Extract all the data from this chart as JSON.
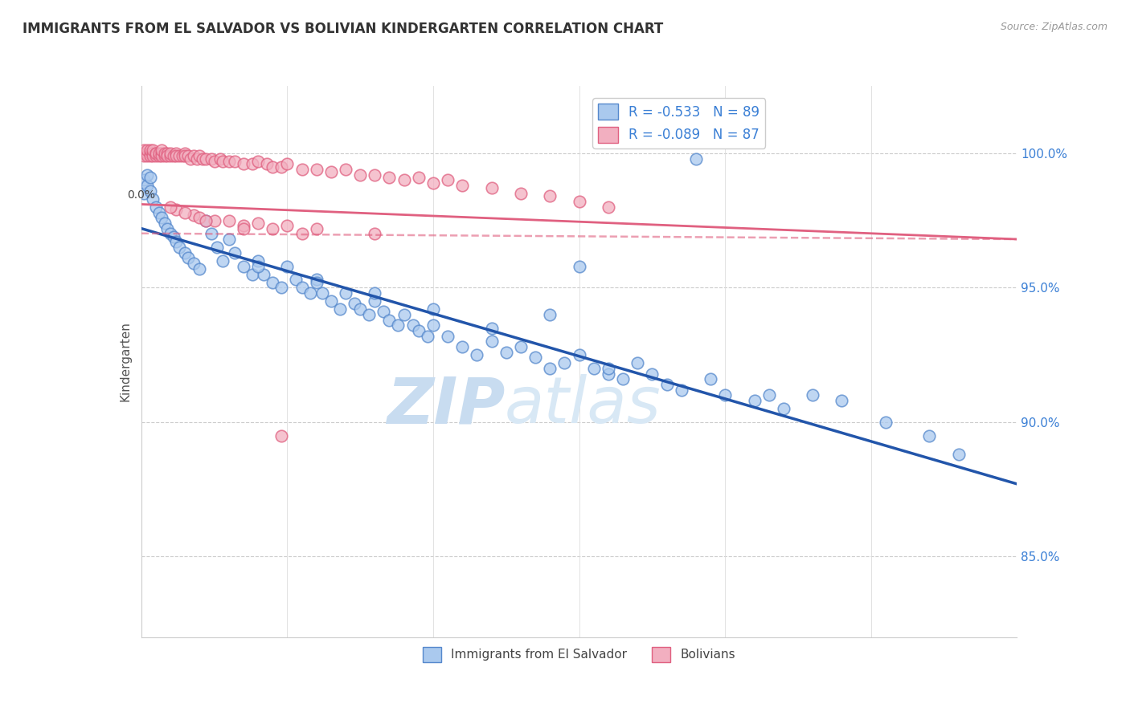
{
  "title": "IMMIGRANTS FROM EL SALVADOR VS BOLIVIAN KINDERGARTEN CORRELATION CHART",
  "source": "Source: ZipAtlas.com",
  "ylabel": "Kindergarten",
  "ytick_labels": [
    "85.0%",
    "90.0%",
    "95.0%",
    "100.0%"
  ],
  "ytick_values": [
    0.85,
    0.9,
    0.95,
    1.0
  ],
  "legend_blue_label": "Immigrants from El Salvador",
  "legend_pink_label": "Bolivians",
  "legend_blue_r": "R = -0.533",
  "legend_blue_n": "N = 89",
  "legend_pink_r": "R = -0.089",
  "legend_pink_n": "N = 87",
  "blue_color": "#aac9ee",
  "pink_color": "#f2afc0",
  "blue_edge_color": "#5588cc",
  "pink_edge_color": "#e06080",
  "blue_line_color": "#2255aa",
  "pink_line_color": "#dd5577",
  "watermark_zip": "ZIP",
  "watermark_atlas": "atlas",
  "watermark_color": "#c8dcf0",
  "xmin": 0.0,
  "xmax": 0.3,
  "ymin": 0.82,
  "ymax": 1.025,
  "blue_trend_x0": 0.0,
  "blue_trend_y0": 0.972,
  "blue_trend_x1": 0.3,
  "blue_trend_y1": 0.877,
  "pink_trend_x0": 0.0,
  "pink_trend_y0": 0.981,
  "pink_trend_x1": 0.3,
  "pink_trend_y1": 0.968,
  "blue_scatter_x": [
    0.001,
    0.001,
    0.002,
    0.002,
    0.003,
    0.003,
    0.004,
    0.005,
    0.006,
    0.007,
    0.008,
    0.009,
    0.01,
    0.011,
    0.012,
    0.013,
    0.015,
    0.016,
    0.018,
    0.02,
    0.022,
    0.024,
    0.026,
    0.028,
    0.03,
    0.032,
    0.035,
    0.038,
    0.04,
    0.042,
    0.045,
    0.048,
    0.05,
    0.053,
    0.055,
    0.058,
    0.06,
    0.062,
    0.065,
    0.068,
    0.07,
    0.073,
    0.075,
    0.078,
    0.08,
    0.083,
    0.085,
    0.088,
    0.09,
    0.093,
    0.095,
    0.098,
    0.1,
    0.105,
    0.11,
    0.115,
    0.12,
    0.125,
    0.13,
    0.135,
    0.14,
    0.145,
    0.15,
    0.155,
    0.16,
    0.165,
    0.17,
    0.175,
    0.18,
    0.185,
    0.19,
    0.195,
    0.2,
    0.21,
    0.215,
    0.22,
    0.23,
    0.24,
    0.255,
    0.27,
    0.28,
    0.15,
    0.16,
    0.14,
    0.12,
    0.1,
    0.08,
    0.06,
    0.04
  ],
  "blue_scatter_y": [
    0.985,
    0.99,
    0.988,
    0.992,
    0.986,
    0.991,
    0.983,
    0.98,
    0.978,
    0.976,
    0.974,
    0.972,
    0.97,
    0.969,
    0.967,
    0.965,
    0.963,
    0.961,
    0.959,
    0.957,
    0.975,
    0.97,
    0.965,
    0.96,
    0.968,
    0.963,
    0.958,
    0.955,
    0.96,
    0.955,
    0.952,
    0.95,
    0.958,
    0.953,
    0.95,
    0.948,
    0.953,
    0.948,
    0.945,
    0.942,
    0.948,
    0.944,
    0.942,
    0.94,
    0.945,
    0.941,
    0.938,
    0.936,
    0.94,
    0.936,
    0.934,
    0.932,
    0.936,
    0.932,
    0.928,
    0.925,
    0.93,
    0.926,
    0.928,
    0.924,
    0.92,
    0.922,
    0.925,
    0.92,
    0.918,
    0.916,
    0.922,
    0.918,
    0.914,
    0.912,
    0.998,
    0.916,
    0.91,
    0.908,
    0.91,
    0.905,
    0.91,
    0.908,
    0.9,
    0.895,
    0.888,
    0.958,
    0.92,
    0.94,
    0.935,
    0.942,
    0.948,
    0.952,
    0.958
  ],
  "pink_scatter_x": [
    0.001,
    0.001,
    0.001,
    0.002,
    0.002,
    0.002,
    0.003,
    0.003,
    0.003,
    0.004,
    0.004,
    0.004,
    0.005,
    0.005,
    0.005,
    0.006,
    0.006,
    0.007,
    0.007,
    0.007,
    0.008,
    0.008,
    0.009,
    0.009,
    0.01,
    0.01,
    0.011,
    0.012,
    0.012,
    0.013,
    0.014,
    0.015,
    0.015,
    0.016,
    0.017,
    0.018,
    0.019,
    0.02,
    0.021,
    0.022,
    0.024,
    0.025,
    0.027,
    0.028,
    0.03,
    0.032,
    0.035,
    0.038,
    0.04,
    0.043,
    0.045,
    0.048,
    0.05,
    0.055,
    0.06,
    0.065,
    0.07,
    0.075,
    0.08,
    0.085,
    0.09,
    0.095,
    0.1,
    0.105,
    0.11,
    0.12,
    0.13,
    0.14,
    0.15,
    0.16,
    0.012,
    0.018,
    0.025,
    0.035,
    0.045,
    0.055,
    0.04,
    0.03,
    0.02,
    0.06,
    0.08,
    0.05,
    0.01,
    0.015,
    0.022,
    0.035,
    0.048
  ],
  "pink_scatter_y": [
    1.0,
    0.999,
    1.001,
    1.0,
    0.999,
    1.001,
    1.0,
    0.999,
    1.001,
    1.0,
    0.999,
    1.001,
    1.0,
    0.999,
    1.0,
    0.999,
    1.0,
    1.0,
    0.999,
    1.001,
    0.999,
    1.0,
    1.0,
    0.999,
    0.999,
    1.0,
    0.999,
    1.0,
    0.999,
    0.999,
    0.999,
    1.0,
    0.999,
    0.999,
    0.998,
    0.999,
    0.998,
    0.999,
    0.998,
    0.998,
    0.998,
    0.997,
    0.998,
    0.997,
    0.997,
    0.997,
    0.996,
    0.996,
    0.997,
    0.996,
    0.995,
    0.995,
    0.996,
    0.994,
    0.994,
    0.993,
    0.994,
    0.992,
    0.992,
    0.991,
    0.99,
    0.991,
    0.989,
    0.99,
    0.988,
    0.987,
    0.985,
    0.984,
    0.982,
    0.98,
    0.979,
    0.977,
    0.975,
    0.973,
    0.972,
    0.97,
    0.974,
    0.975,
    0.976,
    0.972,
    0.97,
    0.973,
    0.98,
    0.978,
    0.975,
    0.972,
    0.895
  ]
}
